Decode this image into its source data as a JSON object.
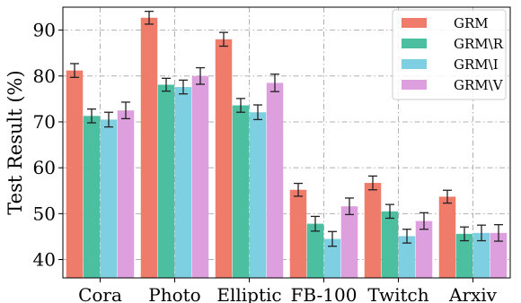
{
  "chart_data": {
    "type": "bar",
    "title": "",
    "xlabel": "",
    "ylabel": "Test Result (%)",
    "categories": [
      "Cora",
      "Photo",
      "Elliptic",
      "FB-100",
      "Twitch",
      "Arxiv"
    ],
    "ylim": [
      36,
      95
    ],
    "yticks": [
      40,
      50,
      60,
      70,
      80,
      90
    ],
    "grid": true,
    "legend_position": "top-right",
    "series": [
      {
        "name": "GRM",
        "color": "#ef7b6b",
        "values": [
          81.2,
          92.7,
          88.0,
          55.2,
          56.7,
          53.7
        ],
        "errors": [
          1.5,
          1.4,
          1.5,
          1.4,
          1.5,
          1.4
        ]
      },
      {
        "name": "GRM\\R",
        "color": "#4bbf9f",
        "values": [
          71.3,
          78.1,
          73.6,
          47.8,
          50.5,
          45.6
        ],
        "errors": [
          1.5,
          1.4,
          1.5,
          1.6,
          1.5,
          1.5
        ]
      },
      {
        "name": "GRM\\I",
        "color": "#7fcfe3",
        "values": [
          70.5,
          77.6,
          72.1,
          44.5,
          45.1,
          45.8
        ],
        "errors": [
          1.6,
          1.5,
          1.6,
          1.6,
          1.5,
          1.7
        ]
      },
      {
        "name": "GRM\\V",
        "color": "#dd9fdd",
        "values": [
          72.5,
          80.0,
          78.5,
          51.6,
          48.4,
          45.8
        ],
        "errors": [
          1.8,
          1.8,
          1.9,
          1.8,
          1.8,
          1.8
        ]
      }
    ]
  }
}
